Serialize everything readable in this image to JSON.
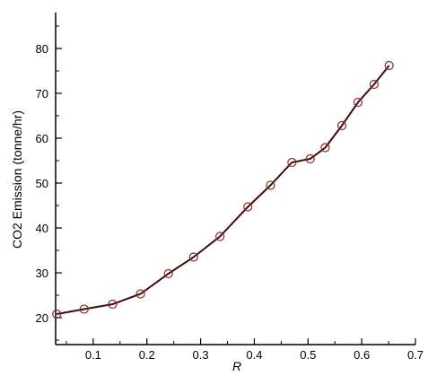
{
  "chart_data": {
    "type": "line",
    "title": "",
    "xlabel": "R",
    "ylabel": "CO2 Emission (tonne/hr)",
    "xlim": [
      0.03,
      0.7
    ],
    "ylim": [
      14,
      88
    ],
    "xticks": [
      0.1,
      0.2,
      0.3,
      0.4,
      0.5,
      0.6,
      0.7
    ],
    "xtick_labels": [
      "0.1",
      "0.2",
      "0.3",
      "0.4",
      "0.5",
      "0.6",
      "0.7"
    ],
    "yticks": [
      20,
      30,
      40,
      50,
      60,
      70,
      80
    ],
    "ytick_labels": [
      "20",
      "30",
      "40",
      "50",
      "60",
      "70",
      "80"
    ],
    "grid": false,
    "legend": "none",
    "line_color": "#3d0c0c",
    "marker": "open-circle",
    "marker_color": "#8a2a2a",
    "series": [
      {
        "x": [
          0.032,
          0.083,
          0.136,
          0.188,
          0.24,
          0.287,
          0.336,
          0.388,
          0.43,
          0.47,
          0.504,
          0.532,
          0.563,
          0.593,
          0.623,
          0.651
        ],
        "y": [
          20.8,
          21.9,
          23.0,
          25.3,
          29.8,
          33.5,
          38.1,
          44.7,
          49.5,
          54.6,
          55.4,
          57.9,
          62.8,
          68.0,
          72.0,
          76.2
        ]
      }
    ]
  }
}
